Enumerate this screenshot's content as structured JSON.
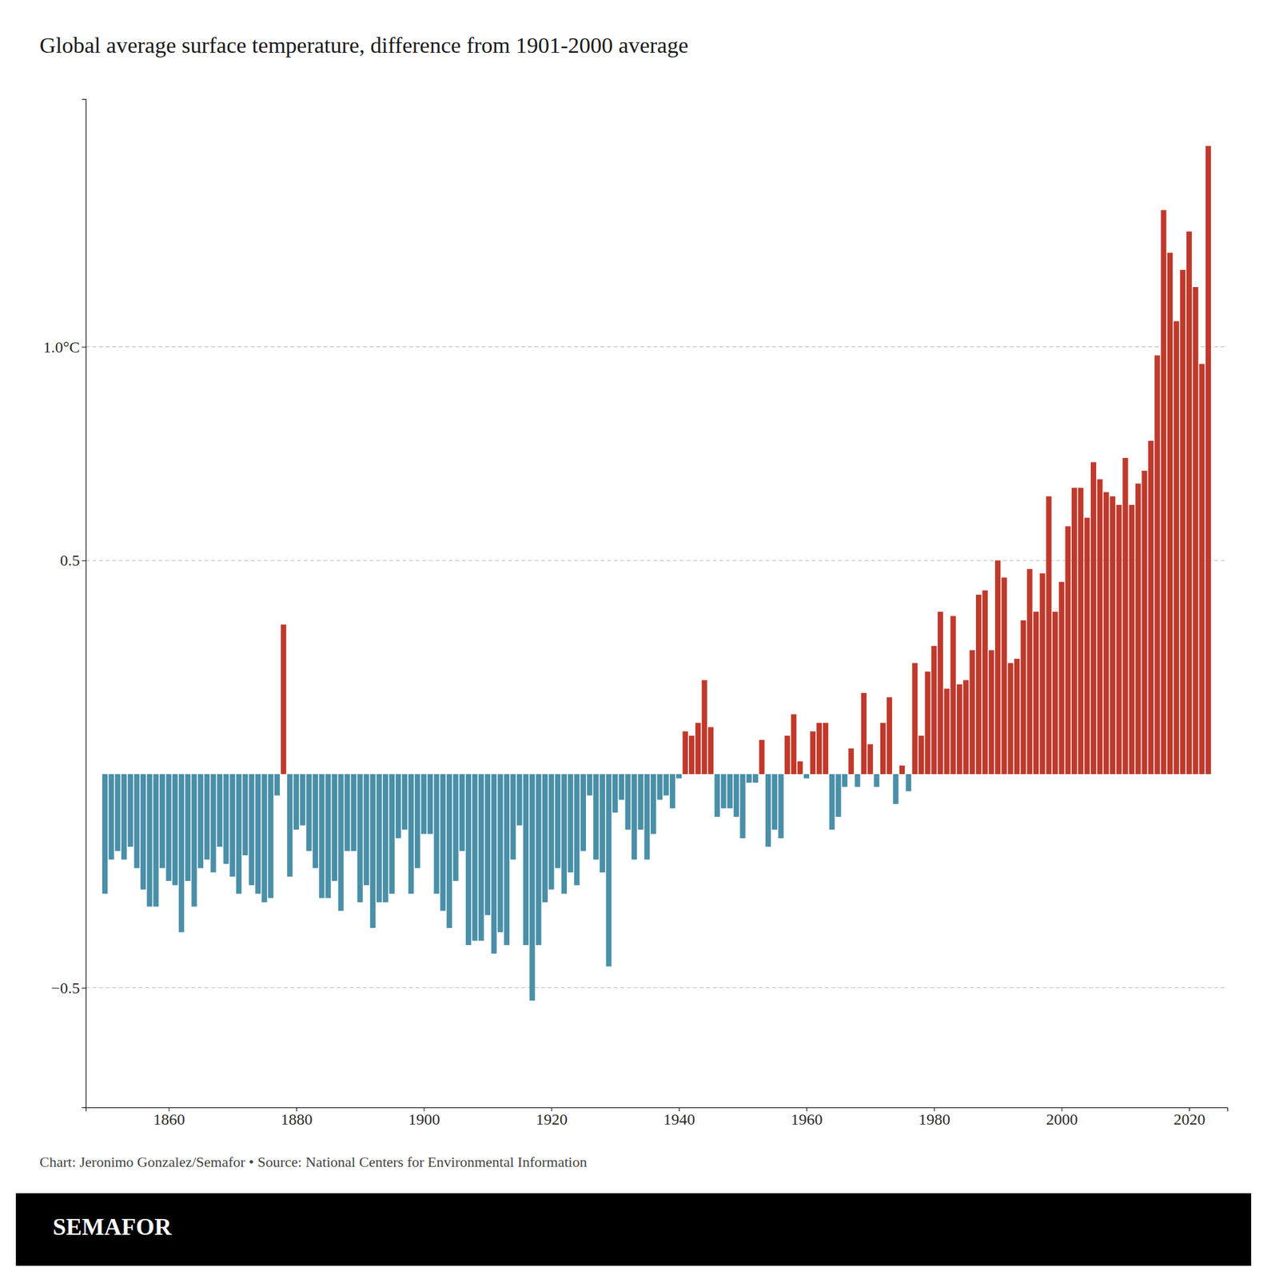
{
  "chart_data": {
    "type": "bar",
    "title": "Global average surface temperature, difference from 1901-2000 average",
    "annotations": [
      "Chart: Jeronimo Gonzalez/Semafor • Source: National Centers for Environmental Information",
      "SEMAFOR"
    ],
    "x": [
      1850,
      1851,
      1852,
      1853,
      1854,
      1855,
      1856,
      1857,
      1858,
      1859,
      1860,
      1861,
      1862,
      1863,
      1864,
      1865,
      1866,
      1867,
      1868,
      1869,
      1870,
      1871,
      1872,
      1873,
      1874,
      1875,
      1876,
      1877,
      1878,
      1879,
      1880,
      1881,
      1882,
      1883,
      1884,
      1885,
      1886,
      1887,
      1888,
      1889,
      1890,
      1891,
      1892,
      1893,
      1894,
      1895,
      1896,
      1897,
      1898,
      1899,
      1900,
      1901,
      1902,
      1903,
      1904,
      1905,
      1906,
      1907,
      1908,
      1909,
      1910,
      1911,
      1912,
      1913,
      1914,
      1915,
      1916,
      1917,
      1918,
      1919,
      1920,
      1921,
      1922,
      1923,
      1924,
      1925,
      1926,
      1927,
      1928,
      1929,
      1930,
      1931,
      1932,
      1933,
      1934,
      1935,
      1936,
      1937,
      1938,
      1939,
      1940,
      1941,
      1942,
      1943,
      1944,
      1945,
      1946,
      1947,
      1948,
      1949,
      1950,
      1951,
      1952,
      1953,
      1954,
      1955,
      1956,
      1957,
      1958,
      1959,
      1960,
      1961,
      1962,
      1963,
      1964,
      1965,
      1966,
      1967,
      1968,
      1969,
      1970,
      1971,
      1972,
      1973,
      1974,
      1975,
      1976,
      1977,
      1978,
      1979,
      1980,
      1981,
      1982,
      1983,
      1984,
      1985,
      1986,
      1987,
      1988,
      1989,
      1990,
      1991,
      1992,
      1993,
      1994,
      1995,
      1996,
      1997,
      1998,
      1999,
      2000,
      2001,
      2002,
      2003,
      2004,
      2005,
      2006,
      2007,
      2008,
      2009,
      2010,
      2011,
      2012,
      2013,
      2014,
      2015,
      2016,
      2017,
      2018,
      2019,
      2020,
      2021,
      2022,
      2023
    ],
    "values": [
      -0.28,
      -0.2,
      -0.18,
      -0.2,
      -0.17,
      -0.22,
      -0.27,
      -0.31,
      -0.31,
      -0.22,
      -0.25,
      -0.26,
      -0.37,
      -0.25,
      -0.31,
      -0.22,
      -0.2,
      -0.23,
      -0.17,
      -0.21,
      -0.24,
      -0.28,
      -0.19,
      -0.26,
      -0.28,
      -0.3,
      -0.29,
      -0.05,
      0.35,
      -0.24,
      -0.13,
      -0.12,
      -0.18,
      -0.22,
      -0.29,
      -0.29,
      -0.25,
      -0.32,
      -0.18,
      -0.18,
      -0.3,
      -0.26,
      -0.36,
      -0.3,
      -0.3,
      -0.28,
      -0.15,
      -0.13,
      -0.28,
      -0.22,
      -0.14,
      -0.14,
      -0.28,
      -0.32,
      -0.36,
      -0.25,
      -0.18,
      -0.4,
      -0.39,
      -0.39,
      -0.33,
      -0.42,
      -0.37,
      -0.4,
      -0.2,
      -0.12,
      -0.4,
      -0.53,
      -0.4,
      -0.3,
      -0.27,
      -0.22,
      -0.28,
      -0.23,
      -0.26,
      -0.18,
      -0.05,
      -0.2,
      -0.23,
      -0.45,
      -0.09,
      -0.06,
      -0.13,
      -0.2,
      -0.13,
      -0.2,
      -0.14,
      -0.06,
      -0.05,
      -0.08,
      -0.01,
      0.1,
      0.09,
      0.12,
      0.22,
      0.11,
      -0.1,
      -0.08,
      -0.08,
      -0.1,
      -0.15,
      -0.02,
      -0.02,
      0.08,
      -0.17,
      -0.13,
      -0.15,
      0.09,
      0.14,
      0.03,
      -0.01,
      0.1,
      0.12,
      0.12,
      -0.13,
      -0.1,
      -0.03,
      0.06,
      -0.03,
      0.19,
      0.07,
      -0.03,
      0.12,
      0.18,
      -0.07,
      0.02,
      -0.04,
      0.26,
      0.09,
      0.24,
      0.3,
      0.38,
      0.2,
      0.37,
      0.21,
      0.22,
      0.29,
      0.42,
      0.43,
      0.29,
      0.5,
      0.46,
      0.26,
      0.27,
      0.36,
      0.48,
      0.38,
      0.47,
      0.65,
      0.38,
      0.45,
      0.58,
      0.67,
      0.67,
      0.6,
      0.73,
      0.69,
      0.66,
      0.65,
      0.63,
      0.74,
      0.63,
      0.68,
      0.71,
      0.78,
      0.98,
      1.32,
      1.22,
      1.06,
      1.18,
      1.27,
      1.14,
      0.96,
      1.47
    ],
    "colors": [
      "#4a8fa8",
      "#4a8fa8",
      "#4a8fa8",
      "#4a8fa8",
      "#4a8fa8",
      "#4a8fa8",
      "#4a8fa8",
      "#4a8fa8",
      "#4a8fa8",
      "#4a8fa8",
      "#4a8fa8",
      "#4a8fa8",
      "#4a8fa8",
      "#4a8fa8",
      "#4a8fa8",
      "#4a8fa8",
      "#4a8fa8",
      "#4a8fa8",
      "#4a8fa8",
      "#4a8fa8",
      "#4a8fa8",
      "#4a8fa8",
      "#4a8fa8",
      "#4a8fa8",
      "#4a8fa8",
      "#4a8fa8",
      "#4a8fa8",
      "#4a8fa8",
      "#c0392b",
      "#4a8fa8",
      "#4a8fa8",
      "#4a8fa8",
      "#4a8fa8",
      "#4a8fa8",
      "#4a8fa8",
      "#4a8fa8",
      "#4a8fa8",
      "#4a8fa8",
      "#4a8fa8",
      "#4a8fa8",
      "#4a8fa8",
      "#4a8fa8",
      "#4a8fa8",
      "#4a8fa8",
      "#4a8fa8",
      "#4a8fa8",
      "#4a8fa8",
      "#4a8fa8",
      "#4a8fa8",
      "#4a8fa8",
      "#4a8fa8",
      "#4a8fa8",
      "#4a8fa8",
      "#4a8fa8",
      "#4a8fa8",
      "#4a8fa8",
      "#4a8fa8",
      "#4a8fa8",
      "#4a8fa8",
      "#4a8fa8",
      "#4a8fa8",
      "#4a8fa8",
      "#4a8fa8",
      "#4a8fa8",
      "#4a8fa8",
      "#4a8fa8",
      "#4a8fa8",
      "#4a8fa8",
      "#4a8fa8",
      "#4a8fa8",
      "#4a8fa8",
      "#4a8fa8",
      "#4a8fa8",
      "#4a8fa8",
      "#4a8fa8",
      "#4a8fa8",
      "#4a8fa8",
      "#4a8fa8",
      "#4a8fa8",
      "#4a8fa8",
      "#4a8fa8",
      "#4a8fa8",
      "#4a8fa8",
      "#4a8fa8",
      "#4a8fa8",
      "#4a8fa8",
      "#4a8fa8",
      "#4a8fa8",
      "#4a8fa8",
      "#4a8fa8",
      "#4a8fa8",
      "#c0392b",
      "#c0392b",
      "#c0392b",
      "#c0392b",
      "#c0392b",
      "#4a8fa8",
      "#4a8fa8",
      "#4a8fa8",
      "#4a8fa8",
      "#4a8fa8",
      "#4a8fa8",
      "#4a8fa8",
      "#c0392b",
      "#4a8fa8",
      "#4a8fa8",
      "#4a8fa8",
      "#c0392b",
      "#c0392b",
      "#c0392b",
      "#4a8fa8",
      "#c0392b",
      "#c0392b",
      "#c0392b",
      "#4a8fa8",
      "#4a8fa8",
      "#4a8fa8",
      "#c0392b",
      "#4a8fa8",
      "#c0392b",
      "#c0392b",
      "#4a8fa8",
      "#c0392b",
      "#c0392b",
      "#4a8fa8",
      "#c0392b",
      "#4a8fa8",
      "#c0392b",
      "#c0392b",
      "#c0392b",
      "#c0392b",
      "#c0392b",
      "#c0392b",
      "#c0392b",
      "#c0392b",
      "#c0392b",
      "#c0392b",
      "#c0392b",
      "#c0392b",
      "#c0392b",
      "#c0392b",
      "#c0392b",
      "#c0392b",
      "#c0392b",
      "#c0392b",
      "#c0392b",
      "#c0392b",
      "#c0392b",
      "#c0392b",
      "#c0392b",
      "#c0392b",
      "#c0392b",
      "#c0392b",
      "#c0392b",
      "#c0392b",
      "#c0392b",
      "#c0392b",
      "#c0392b",
      "#c0392b",
      "#c0392b",
      "#c0392b",
      "#c0392b",
      "#c0392b",
      "#c0392b",
      "#c0392b",
      "#c0392b",
      "#c0392b",
      "#c0392b",
      "#c0392b",
      "#c0392b",
      "#c0392b",
      "#c0392b",
      "#c0392b",
      "#c0392b"
    ],
    "xlim": [
      1847,
      2026
    ],
    "xticks": [
      1860,
      1880,
      1900,
      1920,
      1940,
      1960,
      1980,
      2000,
      2020
    ],
    "ylim": [
      -0.78,
      1.58
    ],
    "yticks": [
      {
        "value": 1.0,
        "label": "1.0°C"
      },
      0.5,
      {
        "value": -0.5,
        "label": "−0.5"
      }
    ],
    "grid": true
  }
}
